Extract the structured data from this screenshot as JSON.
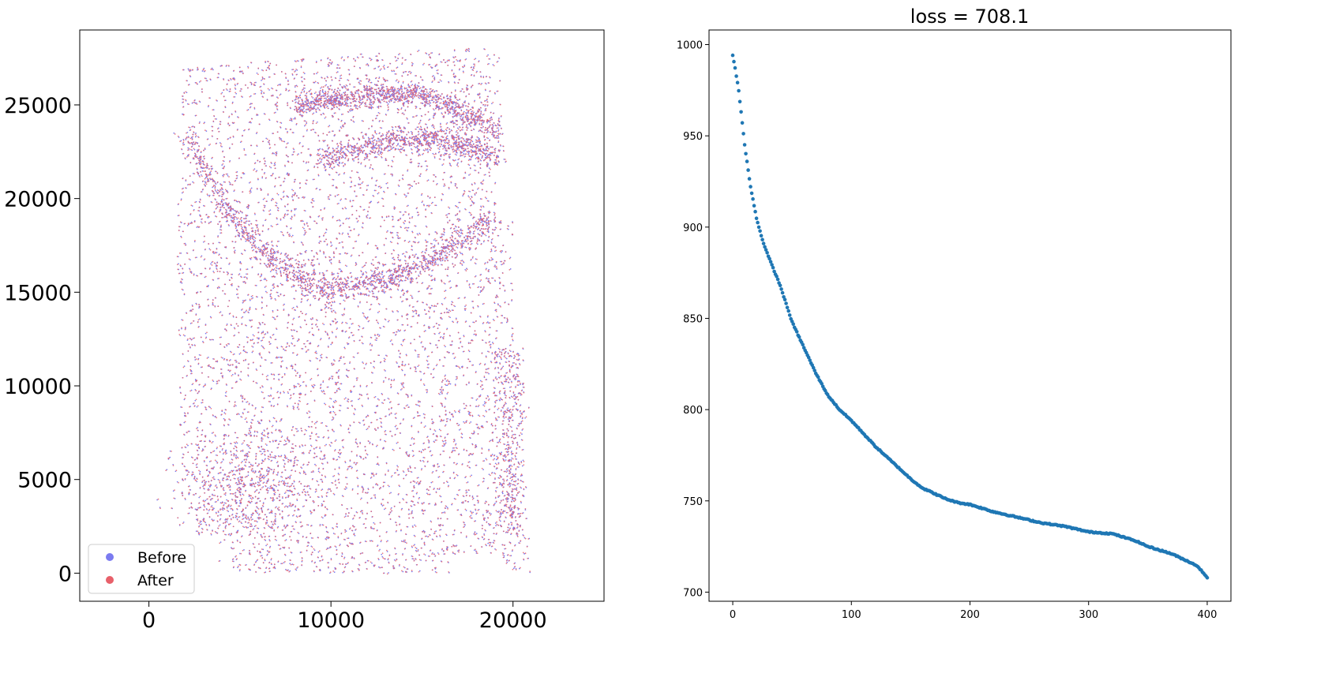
{
  "chart_data": [
    {
      "type": "scatter",
      "title": "",
      "xlabel": "",
      "ylabel": "",
      "xlim": [
        -3800,
        25000
      ],
      "ylim": [
        -1500,
        29000
      ],
      "x_ticks": [
        0,
        10000,
        20000
      ],
      "y_ticks": [
        0,
        5000,
        10000,
        15000,
        20000,
        25000
      ],
      "x_tick_labels": [
        "0",
        "10000",
        "20000"
      ],
      "y_tick_labels": [
        "0",
        "5000",
        "10000",
        "15000",
        "20000",
        "25000"
      ],
      "grid": false,
      "legend": {
        "placement": "lower-left",
        "entries": [
          "Before",
          "After"
        ]
      },
      "series": [
        {
          "name": "Before",
          "color": "#7b7bf0",
          "description_key": "before"
        },
        {
          "name": "After",
          "color": "#e8606a",
          "description_key": "after"
        }
      ]
    },
    {
      "type": "scatter",
      "title": "loss = 708.1",
      "xlabel": "",
      "ylabel": "",
      "xlim": [
        -20,
        420
      ],
      "ylim": [
        695,
        1008
      ],
      "x_ticks": [
        0,
        100,
        200,
        300,
        400
      ],
      "y_ticks": [
        700,
        750,
        800,
        850,
        900,
        950,
        1000
      ],
      "x_tick_labels": [
        "0",
        "100",
        "200",
        "300",
        "400"
      ],
      "y_tick_labels": [
        "700",
        "750",
        "800",
        "850",
        "900",
        "950",
        "1000"
      ],
      "grid": false,
      "color": "#1f77b4",
      "curve_points": [
        [
          0,
          994
        ],
        [
          2,
          987
        ],
        [
          5,
          975
        ],
        [
          10,
          945
        ],
        [
          15,
          922
        ],
        [
          20,
          905
        ],
        [
          25,
          893
        ],
        [
          30,
          884
        ],
        [
          40,
          868
        ],
        [
          50,
          848
        ],
        [
          60,
          834
        ],
        [
          70,
          820
        ],
        [
          80,
          808
        ],
        [
          90,
          800
        ],
        [
          100,
          794
        ],
        [
          110,
          787
        ],
        [
          120,
          780
        ],
        [
          130,
          774
        ],
        [
          140,
          768
        ],
        [
          150,
          762
        ],
        [
          160,
          757
        ],
        [
          170,
          754
        ],
        [
          180,
          751
        ],
        [
          190,
          749
        ],
        [
          200,
          748
        ],
        [
          220,
          744
        ],
        [
          240,
          741
        ],
        [
          260,
          738
        ],
        [
          280,
          736
        ],
        [
          300,
          733
        ],
        [
          320,
          732
        ],
        [
          330,
          730
        ],
        [
          340,
          728
        ],
        [
          350,
          725
        ],
        [
          360,
          723
        ],
        [
          370,
          721
        ],
        [
          380,
          718
        ],
        [
          390,
          715
        ],
        [
          395,
          712
        ],
        [
          400,
          708
        ]
      ]
    }
  ]
}
